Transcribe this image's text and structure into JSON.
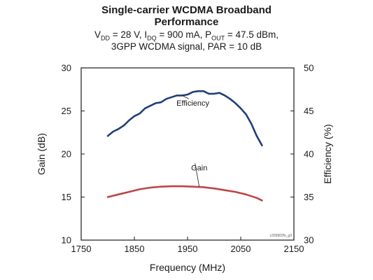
{
  "title": {
    "line1": "Single-carrier WCDMA Broadband",
    "line2": "Performance"
  },
  "subtitle": {
    "line1_parts": [
      "V",
      "DD",
      " = 28 V, I",
      "DQ",
      " = 900 mA, P",
      "OUT",
      " = 47.5 dBm,"
    ],
    "line2": "3GPP WCDMA signal, PAR = 10 dB"
  },
  "figure_code": "c203902fx_g3",
  "chart_data": {
    "type": "line",
    "title": "Single-carrier WCDMA Broadband Performance",
    "xlabel": "Frequency (MHz)",
    "ylabel_left": "Gain (dB)",
    "ylabel_right": "Efficiency (%)",
    "xlim": [
      1750,
      2150
    ],
    "ylim_left": [
      10,
      30
    ],
    "ylim_right": [
      30,
      50
    ],
    "x_ticks": [
      1750,
      1850,
      1950,
      2050,
      2150
    ],
    "y_ticks_left": [
      10,
      15,
      20,
      25,
      30
    ],
    "y_ticks_right": [
      30,
      35,
      40,
      45,
      50
    ],
    "grid": false,
    "series": [
      {
        "name": "Efficiency",
        "axis": "right",
        "color": "#1f3f7a",
        "x": [
          1800,
          1810,
          1820,
          1830,
          1840,
          1850,
          1860,
          1870,
          1880,
          1890,
          1900,
          1910,
          1920,
          1930,
          1940,
          1950,
          1960,
          1970,
          1980,
          1990,
          2000,
          2010,
          2020,
          2030,
          2040,
          2050,
          2060,
          2070,
          2080,
          2090
        ],
        "values": [
          42.1,
          42.6,
          42.9,
          43.3,
          43.9,
          44.4,
          44.7,
          45.3,
          45.6,
          45.9,
          46.0,
          46.4,
          46.6,
          46.8,
          46.8,
          46.9,
          47.2,
          47.3,
          47.3,
          47.0,
          47.0,
          47.1,
          46.8,
          46.4,
          45.9,
          45.3,
          44.6,
          43.5,
          42.1,
          41.0
        ]
      },
      {
        "name": "Gain",
        "axis": "left",
        "color": "#c04444",
        "x": [
          1800,
          1820,
          1840,
          1860,
          1880,
          1900,
          1920,
          1940,
          1960,
          1980,
          2000,
          2020,
          2040,
          2060,
          2080,
          2090
        ],
        "values": [
          15.0,
          15.3,
          15.6,
          15.9,
          16.1,
          16.2,
          16.25,
          16.25,
          16.2,
          16.15,
          16.0,
          15.8,
          15.6,
          15.3,
          14.9,
          14.6
        ]
      }
    ],
    "annotations": [
      {
        "text": "Efficiency",
        "x": 1960,
        "y": 45.6,
        "axis": "right",
        "target_x": 1940,
        "target_y": 46.8
      },
      {
        "text": "Gain",
        "x": 1972,
        "y": 18.1,
        "axis": "left",
        "target_x": 1972,
        "target_y": 16.2
      }
    ]
  }
}
